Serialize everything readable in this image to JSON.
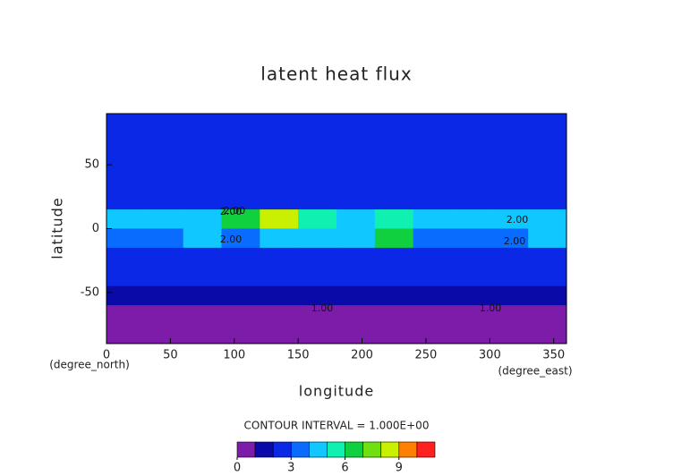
{
  "chart_data": {
    "type": "contour",
    "title": "latent heat flux",
    "x_label": "longitude",
    "y_label": "latitude",
    "x_unit": "(degree_east)",
    "y_unit": "(degree_north)",
    "xlim": [
      0,
      360
    ],
    "ylim": [
      -90,
      90
    ],
    "xticks": [
      0,
      50,
      100,
      150,
      200,
      250,
      300,
      350
    ],
    "yticks": [
      -50,
      0,
      50
    ],
    "x_edges": [
      0,
      30,
      60,
      90,
      120,
      150,
      180,
      210,
      240,
      270,
      300,
      330,
      360
    ],
    "y_edges": [
      90,
      75,
      60,
      45,
      30,
      15,
      0,
      -15,
      -30,
      -45,
      -60,
      -75,
      -90
    ],
    "z": [
      [
        2,
        2,
        2,
        2,
        2,
        2,
        2,
        2,
        2,
        2,
        2,
        2
      ],
      [
        2,
        2,
        2,
        2,
        2,
        2,
        2,
        2,
        2,
        2,
        2,
        2
      ],
      [
        2,
        2,
        2,
        2,
        2,
        2,
        2,
        2,
        2,
        2,
        2,
        2
      ],
      [
        2,
        2,
        2,
        2,
        2,
        2,
        2,
        2,
        2,
        2,
        2,
        2
      ],
      [
        2,
        2,
        2,
        2,
        2,
        2,
        2,
        2,
        2,
        2,
        2,
        2
      ],
      [
        4,
        4,
        4,
        6,
        8,
        5,
        4,
        5,
        4,
        4,
        4,
        4
      ],
      [
        3,
        3,
        4,
        3,
        4,
        4,
        4,
        6,
        3,
        3,
        3,
        4
      ],
      [
        2,
        2,
        2,
        2,
        2,
        2,
        2,
        2,
        2,
        2,
        2,
        2
      ],
      [
        2,
        2,
        2,
        2,
        2,
        2,
        2,
        2,
        2,
        2,
        2,
        2
      ],
      [
        1,
        1,
        1,
        1,
        1,
        1,
        1,
        1,
        1,
        1,
        1,
        1
      ],
      [
        0,
        0,
        0,
        0,
        0,
        0,
        0,
        0,
        0,
        0,
        0,
        0
      ],
      [
        0,
        0,
        0,
        0,
        0,
        0,
        0,
        0,
        0,
        0,
        0,
        0
      ]
    ],
    "contour_interval_label": "CONTOUR INTERVAL = 1.000E+00",
    "contour_labels": [
      "2.00",
      "2.00",
      "2.00",
      "2.00",
      "2.00",
      "1.00",
      "1.00"
    ],
    "colorbar": {
      "levels": [
        0,
        1,
        2,
        3,
        4,
        5,
        6,
        7,
        8,
        9,
        10,
        11
      ],
      "ticks": [
        0,
        3,
        6,
        9
      ],
      "colors": [
        "#7c1ca8",
        "#0a0aa8",
        "#0a28e6",
        "#0a6cff",
        "#10c8ff",
        "#10f0b0",
        "#10d040",
        "#70e010",
        "#c8f000",
        "#ff8000",
        "#ff2020"
      ]
    }
  }
}
